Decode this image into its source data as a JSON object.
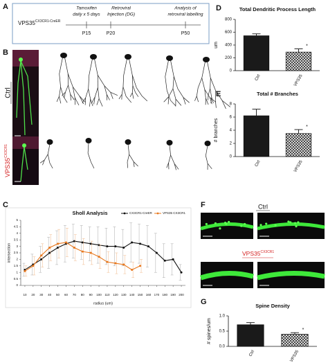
{
  "panel_labels": [
    "A",
    "B",
    "C",
    "D",
    "E",
    "F",
    "G"
  ],
  "timeline": {
    "model": "VPS35",
    "model_sup": "CX3CR1-CreER",
    "steps": [
      {
        "label": [
          "Tamoxifen",
          "daily x 5 days"
        ],
        "time": "P15"
      },
      {
        "label": [
          "Retroviral",
          "Injection (DG)"
        ],
        "time": "P20"
      },
      {
        "label": [
          "Analysis of",
          "retroviral labelling"
        ],
        "time": "P50"
      }
    ]
  },
  "neurons": {
    "ctrl": "Ctrl",
    "mutant": "VPS35",
    "mutant_sup": "CX3CR1"
  },
  "spines": {
    "ctrl": "Ctrl",
    "mutant": "VPS35",
    "mutant_sup": "CX3CR1"
  },
  "chart_data": [
    {
      "type": "bar",
      "title": "Total Dendritic  Process Length",
      "y_label": "um",
      "categories": [
        "Ctrl",
        "VPS35"
      ],
      "values": [
        545,
        290
      ],
      "errors": [
        30,
        50
      ],
      "bar_styles": [
        "solid",
        "crosshatch"
      ],
      "color": "#1a1a1a",
      "annotation": "*",
      "ylim": [
        0,
        800
      ],
      "yticks": [
        0,
        200,
        400,
        600,
        800
      ]
    },
    {
      "type": "bar",
      "title": "Total # Branches",
      "y_label": "# branches",
      "categories": [
        "Ctrl",
        "VPS35"
      ],
      "values": [
        6.2,
        3.5
      ],
      "errors": [
        1.0,
        0.6
      ],
      "bar_styles": [
        "solid",
        "crosshatch"
      ],
      "color": "#1a1a1a",
      "annotation": "*",
      "ylim": [
        0,
        8
      ],
      "yticks": [
        0,
        2,
        4,
        6,
        8
      ]
    },
    {
      "type": "line",
      "title": "Sholl Analysis",
      "x_label": "radius (um)",
      "y_label": "intersection",
      "x": [
        10,
        20,
        30,
        40,
        50,
        60,
        70,
        80,
        90,
        100,
        110,
        120,
        130,
        140,
        150,
        160,
        170,
        180,
        190,
        200
      ],
      "series": [
        {
          "name": "CX3CR1-CreER",
          "color": "#111111",
          "values": [
            1.2,
            1.6,
            2.0,
            2.5,
            2.9,
            3.2,
            3.4,
            3.3,
            3.2,
            3.1,
            3.0,
            3.0,
            2.9,
            3.3,
            3.2,
            3.0,
            2.5,
            1.9,
            2.0,
            1.0
          ],
          "errors": [
            0.5,
            0.8,
            1.0,
            1.2,
            1.3,
            1.4,
            1.3,
            1.3,
            1.3,
            1.4,
            1.4,
            1.5,
            1.4,
            1.5,
            1.5,
            1.6,
            1.5,
            1.3,
            1.2,
            0.6
          ]
        },
        {
          "name": "VPS35 CX3CR1",
          "color": "#e8781e",
          "values": [
            1.1,
            1.5,
            2.3,
            2.9,
            3.2,
            3.3,
            2.9,
            2.6,
            2.5,
            2.2,
            1.8,
            1.7,
            1.6,
            1.2,
            1.5,
            null,
            null,
            null,
            null,
            null
          ],
          "errors": [
            0.4,
            0.7,
            0.9,
            1.0,
            1.1,
            1.1,
            1.0,
            1.0,
            0.9,
            0.9,
            0.8,
            0.8,
            0.7,
            0.6,
            0.5,
            null,
            null,
            null,
            null,
            null
          ]
        }
      ],
      "xlim": [
        5,
        205
      ],
      "xticks": [
        10,
        20,
        30,
        40,
        50,
        60,
        70,
        80,
        90,
        100,
        110,
        120,
        130,
        140,
        150,
        160,
        170,
        180,
        190,
        200
      ],
      "ylim": [
        0,
        5
      ],
      "yticks": [
        0,
        0.5,
        1,
        1.5,
        2,
        2.5,
        3,
        3.5,
        4,
        4.5,
        5
      ],
      "grid": false,
      "legend": "upper right"
    },
    {
      "type": "bar",
      "title": "Spine Density",
      "y_label": "# spines/um",
      "categories": [
        "Ctrl",
        "VPS35"
      ],
      "values": [
        0.71,
        0.4
      ],
      "errors": [
        0.07,
        0.05
      ],
      "bar_styles": [
        "solid",
        "crosshatch"
      ],
      "color": "#1a1a1a",
      "annotation": "*",
      "ylim": [
        0,
        1.0
      ],
      "yticks": [
        {
          "value": 0,
          "label": "0.0"
        },
        {
          "value": 0.5,
          "label": "0.5"
        },
        {
          "value": 1.0,
          "label": "1.0"
        }
      ]
    }
  ]
}
